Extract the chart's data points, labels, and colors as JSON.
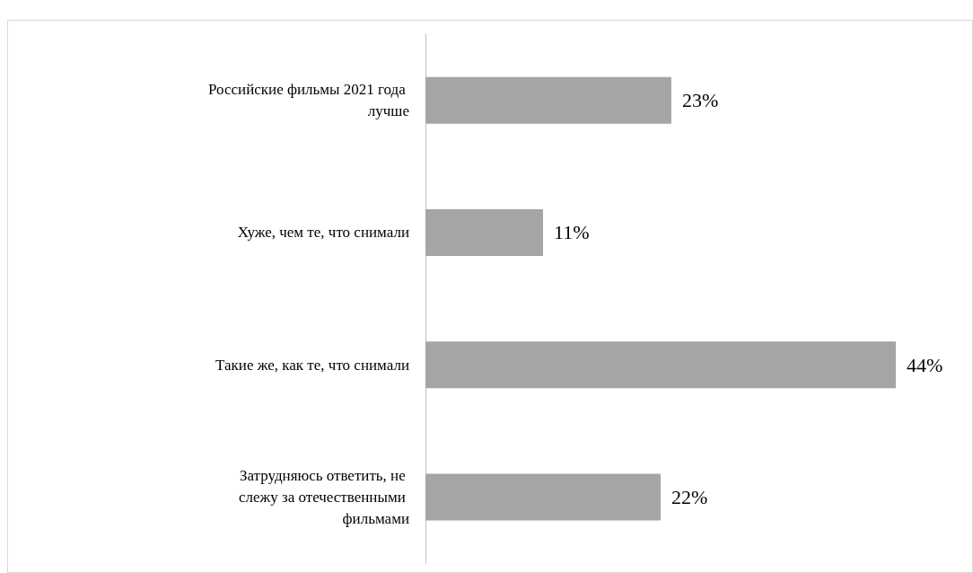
{
  "chart_data": {
    "type": "bar",
    "orientation": "horizontal",
    "categories": [
      "Российские фильмы 2021 года лучше",
      "Хуже, чем те, что снимали",
      "Такие же, как те, что снимали",
      "Затрудняюсь ответить, не слежу за отечественными фильмами"
    ],
    "values": [
      23,
      11,
      44,
      22
    ],
    "value_labels": [
      "23%",
      "11%",
      "44%",
      "22%"
    ],
    "color": "#a5a5a5"
  }
}
